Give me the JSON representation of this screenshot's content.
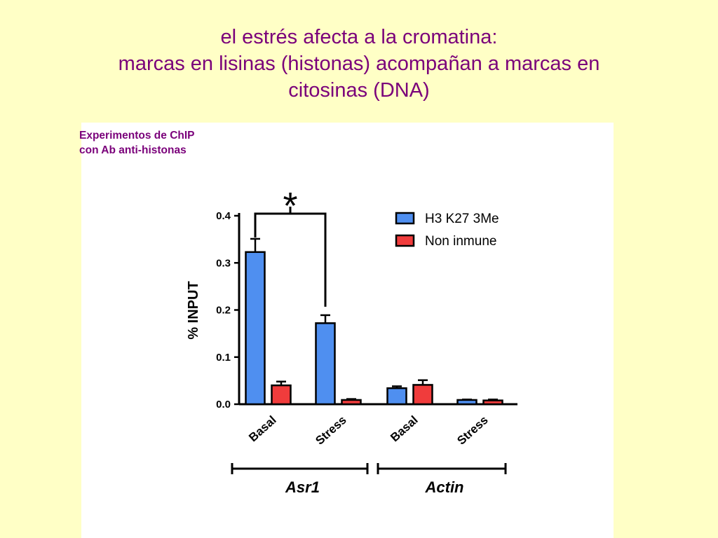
{
  "slide": {
    "title_lines": [
      "el estrés afecta a la cromatina:",
      "marcas en lisinas (histonas) acompañan a marcas en",
      "citosinas (DNA)"
    ],
    "caption_lines": [
      "Experimentos de ChIP",
      "con Ab anti-histonas"
    ]
  },
  "chart_data": {
    "type": "bar",
    "ylabel": "% INPUT",
    "ylim": [
      0,
      0.4
    ],
    "yticks": [
      "0.0",
      "0.1",
      "0.2",
      "0.3",
      "0.4"
    ],
    "categories": [
      "Basal",
      "Stress",
      "Basal",
      "Stress"
    ],
    "groups": [
      {
        "label": "Asr1",
        "categories": [
          0,
          1
        ]
      },
      {
        "label": "Actin",
        "categories": [
          2,
          3
        ]
      }
    ],
    "series": [
      {
        "name": "H3 K27 3Me",
        "color": "#4f8ff0",
        "values": [
          0.323,
          0.172,
          0.034,
          0.009
        ],
        "errors": [
          0.028,
          0.017,
          0.004,
          0.001
        ]
      },
      {
        "name": "Non inmune",
        "color": "#f03c3c",
        "values": [
          0.04,
          0.009,
          0.041,
          0.008
        ],
        "errors": [
          0.008,
          0.002,
          0.01,
          0.002
        ]
      }
    ],
    "significance": {
      "label": "*",
      "between": [
        0,
        1
      ],
      "series": 0
    },
    "legend_position": "top-right",
    "grid": false
  }
}
